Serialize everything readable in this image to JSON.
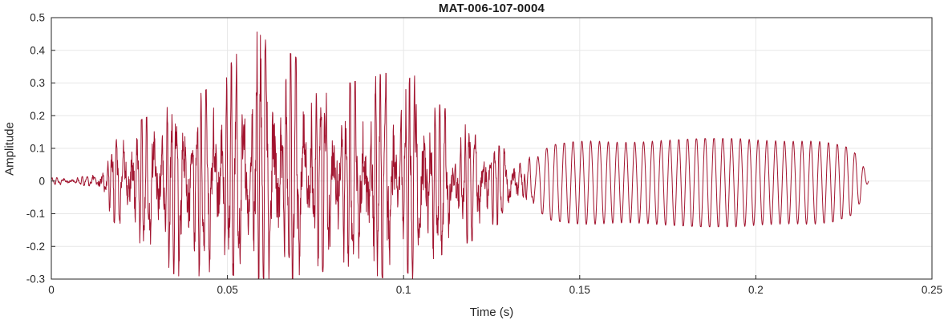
{
  "figure": {
    "background": "#ffffff"
  },
  "chart_data": {
    "type": "line",
    "title": "MAT-006-107-0004",
    "xlabel": "Time (s)",
    "ylabel": "Amplitude",
    "xlim": [
      0,
      0.25
    ],
    "ylim": [
      -0.3,
      0.5
    ],
    "xticks": [
      0,
      0.05,
      0.1,
      0.15,
      0.2,
      0.25
    ],
    "xtick_labels": [
      "0",
      "0.05",
      "0.1",
      "0.15",
      "0.2",
      "0.25"
    ],
    "yticks": [
      -0.3,
      -0.2,
      -0.1,
      0,
      0.1,
      0.2,
      0.3,
      0.4,
      0.5
    ],
    "ytick_labels": [
      "-0.3",
      "-0.2",
      "-0.1",
      "0",
      "0.1",
      "0.2",
      "0.3",
      "0.4",
      "0.5"
    ],
    "grid": true,
    "legend": "none",
    "line_color": "#A2142F",
    "axis_color": "#262626",
    "grid_color": "#e7e7e7",
    "signal": {
      "description": "Speech-like audio waveform: near-zero noise floor 0-0.014 s; complex voiced burst 0.015-0.132 s with positive peaks up to 0.46 near t=0.058 s and negative excursions clipped at the -0.3 axis limit; quasi-sinusoidal ~400 Hz tone from 0.135 to 0.231 s at roughly +0.13/-0.14 amplitude, tapering to zero at 0.232 s.",
      "envelope": {
        "t": [
          0.0,
          0.006,
          0.011,
          0.014,
          0.016,
          0.018,
          0.02,
          0.024,
          0.028,
          0.032,
          0.036,
          0.04,
          0.044,
          0.048,
          0.052,
          0.056,
          0.058,
          0.061,
          0.064,
          0.068,
          0.072,
          0.076,
          0.08,
          0.085,
          0.09,
          0.095,
          0.1,
          0.104,
          0.108,
          0.112,
          0.116,
          0.12,
          0.125,
          0.13,
          0.134,
          0.138,
          0.142,
          0.148,
          0.155,
          0.165,
          0.175,
          0.185,
          0.195,
          0.205,
          0.215,
          0.222,
          0.227,
          0.23,
          0.232
        ],
        "pos": [
          0.01,
          0.012,
          0.015,
          0.04,
          0.07,
          0.12,
          0.15,
          0.18,
          0.2,
          0.23,
          0.21,
          0.25,
          0.28,
          0.3,
          0.38,
          0.44,
          0.46,
          0.43,
          0.4,
          0.39,
          0.36,
          0.33,
          0.31,
          0.3,
          0.32,
          0.33,
          0.28,
          0.36,
          0.25,
          0.22,
          0.18,
          0.16,
          0.12,
          0.09,
          0.07,
          0.08,
          0.11,
          0.12,
          0.125,
          0.125,
          0.125,
          0.13,
          0.13,
          0.13,
          0.125,
          0.115,
          0.1,
          0.06,
          0.0
        ],
        "neg": [
          0.01,
          0.012,
          0.015,
          0.045,
          0.08,
          0.13,
          0.14,
          0.17,
          0.24,
          0.27,
          0.29,
          0.3,
          0.28,
          0.27,
          0.29,
          0.3,
          0.3,
          0.3,
          0.3,
          0.3,
          0.29,
          0.28,
          0.27,
          0.26,
          0.28,
          0.3,
          0.26,
          0.33,
          0.24,
          0.22,
          0.2,
          0.18,
          0.15,
          0.1,
          0.08,
          0.09,
          0.12,
          0.13,
          0.135,
          0.135,
          0.135,
          0.14,
          0.14,
          0.14,
          0.135,
          0.125,
          0.105,
          0.06,
          0.0
        ]
      },
      "synthesis": {
        "burst": {
          "f": 590,
          "pitch": 119,
          "fm_depth": 2.0,
          "h2": 1370,
          "drive": 1.35
        },
        "tail": {
          "f": 400,
          "am_f": 23,
          "am_depth": 0.05
        },
        "blend": [
          0.131,
          0.139
        ],
        "noise": 0.25,
        "dt": 8e-05,
        "t_end": 0.232
      }
    }
  }
}
